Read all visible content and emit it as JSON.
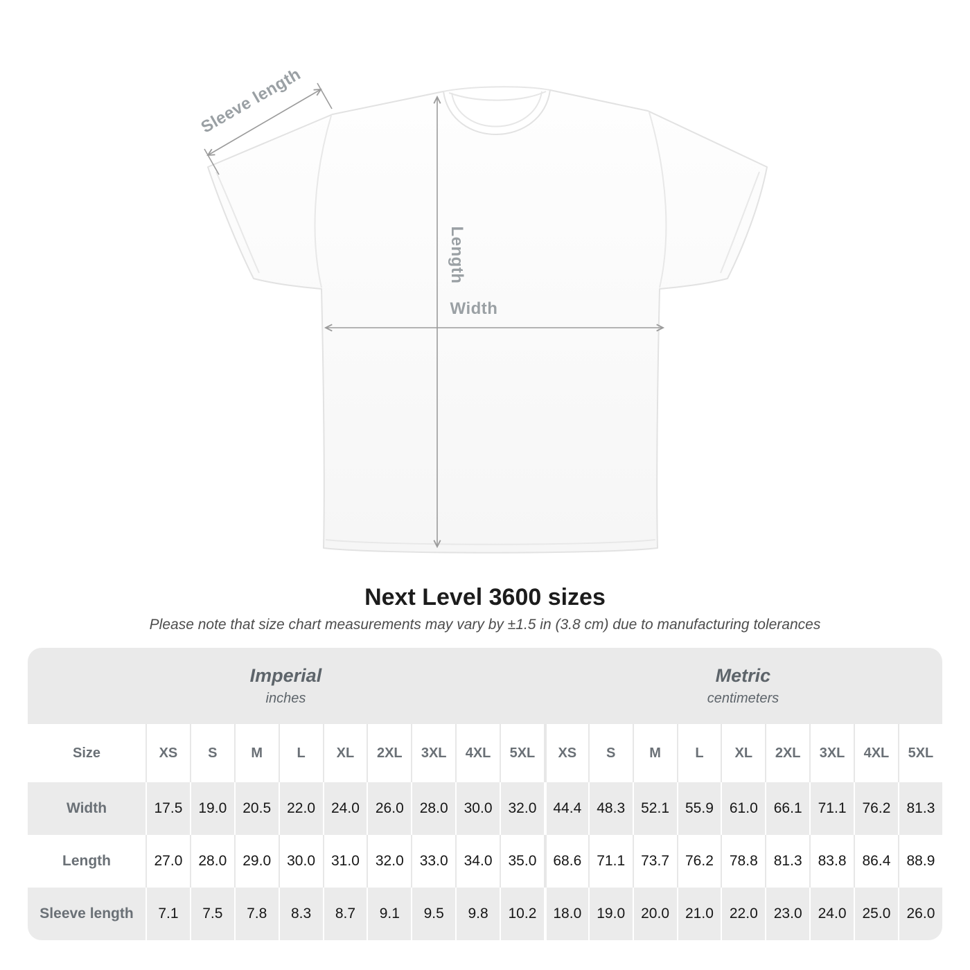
{
  "title": "Next Level 3600 sizes",
  "subtitle": "Please note that size chart measurements may vary by ±1.5 in (3.8 cm) due to manufacturing tolerances",
  "diagram": {
    "sleeve_label": "Sleeve length",
    "length_label": "Length",
    "width_label": "Width",
    "arrow_color": "#9b9b9b",
    "label_color": "#9aa0a4",
    "shirt_outline_color": "#e2e2e2"
  },
  "table": {
    "corner_label": "Size",
    "unit_groups": [
      {
        "name": "Imperial",
        "unit": "inches"
      },
      {
        "name": "Metric",
        "unit": "centimeters"
      }
    ],
    "sizes": [
      "XS",
      "S",
      "M",
      "L",
      "XL",
      "2XL",
      "3XL",
      "4XL",
      "5XL"
    ],
    "rows": [
      {
        "label": "Width",
        "imperial": [
          "17.5",
          "19.0",
          "20.5",
          "22.0",
          "24.0",
          "26.0",
          "28.0",
          "30.0",
          "32.0"
        ],
        "metric": [
          "44.4",
          "48.3",
          "52.1",
          "55.9",
          "61.0",
          "66.1",
          "71.1",
          "76.2",
          "81.3"
        ]
      },
      {
        "label": "Length",
        "imperial": [
          "27.0",
          "28.0",
          "29.0",
          "30.0",
          "31.0",
          "32.0",
          "33.0",
          "34.0",
          "35.0"
        ],
        "metric": [
          "68.6",
          "71.1",
          "73.7",
          "76.2",
          "78.8",
          "81.3",
          "83.8",
          "86.4",
          "88.9"
        ]
      },
      {
        "label": "Sleeve length",
        "imperial": [
          "7.1",
          "7.5",
          "7.8",
          "8.3",
          "8.7",
          "9.1",
          "9.5",
          "9.8",
          "10.2"
        ],
        "metric": [
          "18.0",
          "19.0",
          "20.0",
          "21.0",
          "22.0",
          "23.0",
          "24.0",
          "25.0",
          "26.0"
        ]
      }
    ],
    "colors": {
      "band_gray": "#eaeaea",
      "row_gray": "#ebebeb",
      "label_gray": "#6a7076",
      "value_black": "#161616"
    }
  }
}
